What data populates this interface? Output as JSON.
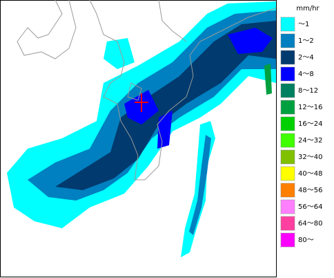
{
  "legend": {
    "title": "mm/hr",
    "items": [
      {
        "label": "～1",
        "color": "#00ffff"
      },
      {
        "label": "1～2",
        "color": "#0080c0"
      },
      {
        "label": "2～4",
        "color": "#003a6e"
      },
      {
        "label": "4～8",
        "color": "#0000ff"
      },
      {
        "label": "8～12",
        "color": "#008060"
      },
      {
        "label": "12～16",
        "color": "#00a040"
      },
      {
        "label": "16～24",
        "color": "#00d000"
      },
      {
        "label": "24～32",
        "color": "#40ff00"
      },
      {
        "label": "32～40",
        "color": "#80c000"
      },
      {
        "label": "40～48",
        "color": "#ffff00"
      },
      {
        "label": "48～56",
        "color": "#ff8000"
      },
      {
        "label": "56～64",
        "color": "#ff80ff"
      },
      {
        "label": "64～80",
        "color": "#ff40a0"
      },
      {
        "label": "80～",
        "color": "#ff00ff"
      }
    ]
  }
}
